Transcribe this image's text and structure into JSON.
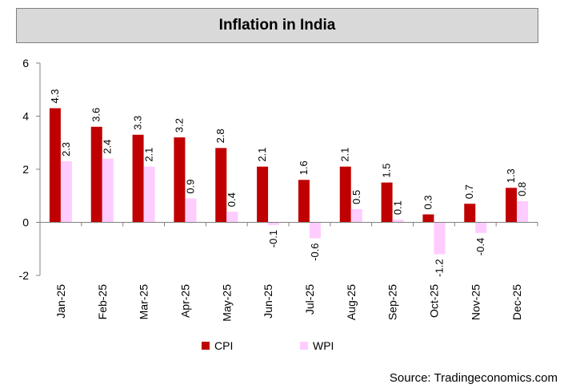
{
  "chart_data": {
    "type": "bar",
    "title": "Inflation in India",
    "categories": [
      "Jan-25",
      "Feb-25",
      "Mar-25",
      "Apr-25",
      "May-25",
      "Jun-25",
      "Jul-25",
      "Aug-25",
      "Sep-25",
      "Oct-25",
      "Nov-25",
      "Dec-25"
    ],
    "series": [
      {
        "name": "CPI",
        "color": "#c00000",
        "values": [
          4.3,
          3.6,
          3.3,
          3.2,
          2.8,
          2.1,
          1.6,
          2.1,
          1.5,
          0.3,
          0.7,
          1.3
        ]
      },
      {
        "name": "WPI",
        "color": "#ffccff",
        "values": [
          2.3,
          2.4,
          2.1,
          0.9,
          0.4,
          -0.1,
          -0.6,
          0.5,
          0.1,
          -1.2,
          -0.4,
          0.8
        ]
      }
    ],
    "ylim": [
      -2,
      6
    ],
    "yticks": [
      -2,
      0,
      2,
      4,
      6
    ],
    "xlabel": "",
    "ylabel": "",
    "legend": "bottom",
    "grid": false
  },
  "source_text": "Source: Tradingeconomics.com"
}
